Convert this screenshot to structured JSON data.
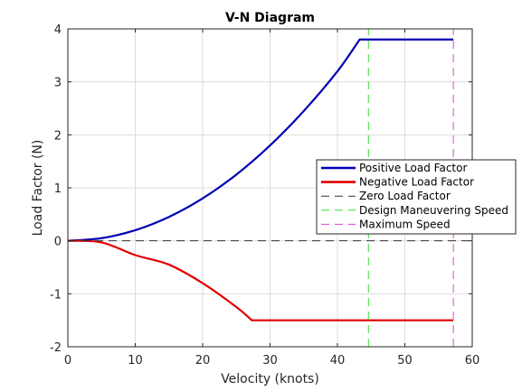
{
  "chart_data": {
    "type": "line",
    "title": "V-N Diagram",
    "xlabel": "Velocity (knots)",
    "ylabel": "Load Factor (N)",
    "xlim": [
      0,
      60
    ],
    "ylim": [
      -2,
      4
    ],
    "xticks": [
      "0",
      "10",
      "20",
      "30",
      "40",
      "50",
      "60"
    ],
    "yticks": [
      "-2",
      "-1",
      "0",
      "1",
      "2",
      "3",
      "4"
    ],
    "grid": true,
    "legend_position": "right",
    "series": [
      {
        "name": "Positive Load Factor",
        "color": "#0000b3",
        "style": "solid",
        "x": [
          0,
          5,
          10,
          15,
          20,
          25,
          30,
          35,
          40,
          43.3,
          50,
          57.2
        ],
        "y": [
          0,
          0.05,
          0.2,
          0.45,
          0.8,
          1.25,
          1.8,
          2.45,
          3.2,
          3.8,
          3.8,
          3.8
        ]
      },
      {
        "name": "Negative Load Factor",
        "color": "#e00000",
        "style": "solid",
        "x": [
          0,
          5,
          10,
          15,
          20,
          25,
          27.3,
          35,
          45,
          57.2
        ],
        "y": [
          0,
          -0.03,
          -0.27,
          -0.45,
          -0.8,
          -1.25,
          -1.5,
          -1.5,
          -1.5,
          -1.5
        ]
      },
      {
        "name": "Zero Load Factor",
        "color": "#333333",
        "style": "dashed",
        "x": [
          0,
          60
        ],
        "y": [
          0,
          0
        ]
      },
      {
        "name": "Design Maneuvering Speed",
        "color": "#33dd33",
        "style": "dashed",
        "x": [
          44.6,
          44.6
        ],
        "y": [
          -2,
          4
        ]
      },
      {
        "name": "Maximum Speed",
        "color": "#dd44dd",
        "style": "dashed",
        "x": [
          57.2,
          57.2
        ],
        "y": [
          -2,
          4
        ]
      }
    ]
  }
}
